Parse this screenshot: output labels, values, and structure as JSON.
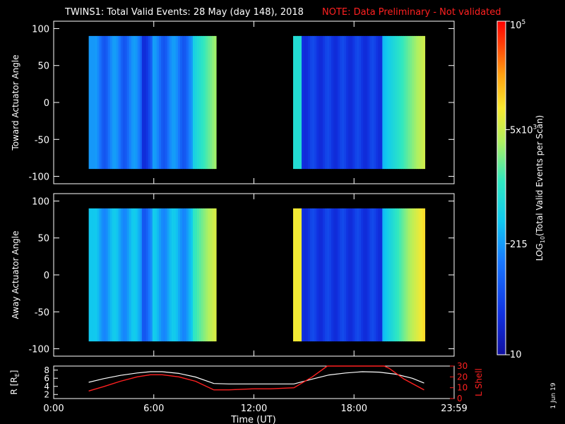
{
  "header": {
    "title": "TWINS1: Total Valid Events: 28 May (day 148), 2018",
    "note": "NOTE: Data Preliminary - Not validated"
  },
  "footer": {
    "date_stamp": "1 Jun 19"
  },
  "colors": {
    "note": "#ff2020",
    "lshell": "#ff2020",
    "radius": "#ffffff"
  },
  "chart_data": [
    {
      "type": "heatmap",
      "panel": "toward",
      "ylabel": "Toward Actuator Angle",
      "ylim": [
        -110,
        110
      ],
      "yticks": [
        "100",
        "50",
        "0",
        "-50",
        "-100"
      ],
      "ytick_values": [
        100,
        50,
        0,
        -50,
        -100
      ],
      "xlim_hours": [
        0,
        24
      ],
      "data_blocks_hours": [
        [
          2.1,
          9.65
        ],
        [
          14.35,
          22.2
        ]
      ],
      "angle_range": [
        -90,
        90
      ]
    },
    {
      "type": "heatmap",
      "panel": "away",
      "ylabel": "Away Actuator Angle",
      "ylim": [
        -110,
        110
      ],
      "yticks": [
        "100",
        "50",
        "0",
        "-50",
        "-100"
      ],
      "ytick_values": [
        100,
        50,
        0,
        -50,
        -100
      ],
      "xlim_hours": [
        0,
        24
      ],
      "data_blocks_hours": [
        [
          2.1,
          9.65
        ],
        [
          14.35,
          22.2
        ]
      ],
      "angle_range": [
        -90,
        90
      ]
    },
    {
      "type": "line",
      "panel": "orbit",
      "ylabel": "R [R",
      "ylabel_sub": "E",
      "ylabel_end": "]",
      "ylim": [
        1,
        9
      ],
      "yticks": [
        "8",
        "6",
        "4",
        "2"
      ],
      "ytick_values": [
        8,
        6,
        4,
        2
      ],
      "y2label": "L Shell",
      "y2lim": [
        0,
        30
      ],
      "y2ticks": [
        "30",
        "20",
        "10",
        "0"
      ],
      "y2tick_values": [
        30,
        20,
        10,
        0
      ],
      "xlabel": "Time (UT)",
      "xticks": [
        "0:00",
        "6:00",
        "12:00",
        "18:00",
        "23:59"
      ],
      "xtick_values": [
        0,
        6,
        12,
        18,
        24
      ],
      "series": [
        {
          "axis": "left",
          "x": [
            2.1,
            3,
            4,
            5,
            5.8,
            6.5,
            7.5,
            8.5,
            9.6,
            10.5,
            12,
            13,
            14.4,
            15.5,
            16.5,
            17.5,
            18.5,
            19.5,
            20.5,
            21.5,
            22.2
          ],
          "y": [
            5.0,
            5.9,
            6.7,
            7.3,
            7.6,
            7.6,
            7.2,
            6.3,
            4.7,
            4.6,
            4.6,
            4.6,
            4.6,
            5.8,
            6.8,
            7.3,
            7.6,
            7.5,
            7.0,
            6.0,
            4.8
          ]
        },
        {
          "axis": "right",
          "x": [
            2.1,
            3,
            4,
            5,
            5.8,
            6.5,
            7.5,
            8.5,
            9.6,
            10.5,
            12,
            13,
            14.4,
            15.5,
            16.4,
            16.6,
            19.8,
            20.1,
            21,
            22.2
          ],
          "y": [
            7,
            11,
            16,
            20,
            22,
            22,
            20,
            16,
            8,
            8,
            9,
            9,
            10,
            20,
            33,
            33,
            33,
            28,
            18,
            8
          ]
        }
      ]
    }
  ],
  "colorbar": {
    "label": "LOG",
    "label_sub": "10",
    "label_end": "(Total Valid Events per Scan)",
    "ticks": [
      {
        "value": 10,
        "text": "10"
      },
      {
        "value": 215,
        "text": "215"
      },
      {
        "value": 5000,
        "base": "5x10",
        "exp": "3"
      },
      {
        "value": 100000,
        "base": "10",
        "exp": "5"
      }
    ],
    "range": [
      10,
      100000
    ],
    "scale": "log"
  }
}
